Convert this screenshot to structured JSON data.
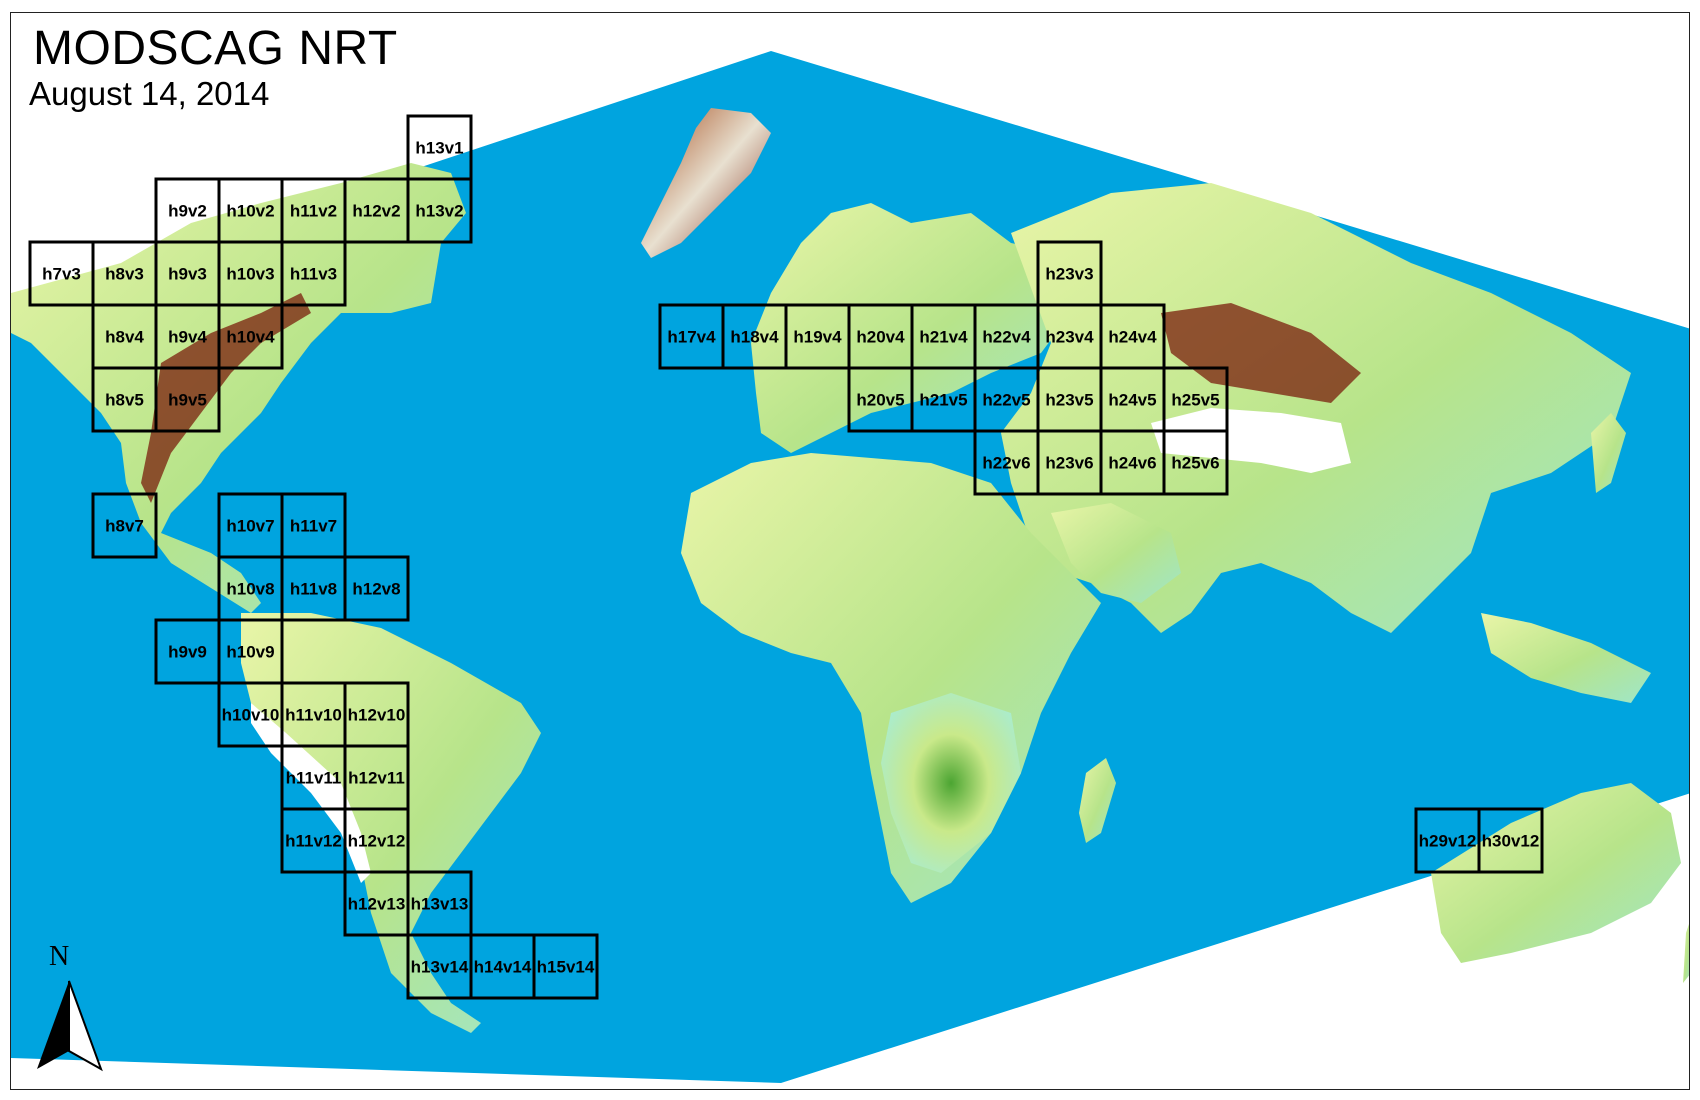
{
  "title": "MODSCAG NRT",
  "date": "August 14, 2014",
  "north_label": "N",
  "colors": {
    "ocean": "#00a4df",
    "lowland": "#a8ecd2",
    "plains": "#e9f5a8",
    "forest": "#4ca532",
    "highland": "#7a1e0c",
    "snow": "#ffffff",
    "tile_border": "#000000"
  },
  "icons": {
    "north_arrow": "north-arrow-icon"
  },
  "tiles": [
    {
      "label": "h13v1",
      "h": 13,
      "v": 1
    },
    {
      "label": "h9v2",
      "h": 9,
      "v": 2
    },
    {
      "label": "h10v2",
      "h": 10,
      "v": 2
    },
    {
      "label": "h11v2",
      "h": 11,
      "v": 2
    },
    {
      "label": "h12v2",
      "h": 12,
      "v": 2
    },
    {
      "label": "h13v2",
      "h": 13,
      "v": 2
    },
    {
      "label": "h7v3",
      "h": 7,
      "v": 3
    },
    {
      "label": "h8v3",
      "h": 8,
      "v": 3
    },
    {
      "label": "h9v3",
      "h": 9,
      "v": 3
    },
    {
      "label": "h10v3",
      "h": 10,
      "v": 3
    },
    {
      "label": "h11v3",
      "h": 11,
      "v": 3
    },
    {
      "label": "h8v4",
      "h": 8,
      "v": 4
    },
    {
      "label": "h9v4",
      "h": 9,
      "v": 4
    },
    {
      "label": "h10v4",
      "h": 10,
      "v": 4
    },
    {
      "label": "h8v5",
      "h": 8,
      "v": 5
    },
    {
      "label": "h9v5",
      "h": 9,
      "v": 5
    },
    {
      "label": "h8v7",
      "h": 8,
      "v": 7
    },
    {
      "label": "h10v7",
      "h": 10,
      "v": 7
    },
    {
      "label": "h11v7",
      "h": 11,
      "v": 7
    },
    {
      "label": "h10v8",
      "h": 10,
      "v": 8
    },
    {
      "label": "h11v8",
      "h": 11,
      "v": 8
    },
    {
      "label": "h12v8",
      "h": 12,
      "v": 8
    },
    {
      "label": "h9v9",
      "h": 9,
      "v": 9
    },
    {
      "label": "h10v9",
      "h": 10,
      "v": 9
    },
    {
      "label": "h10v10",
      "h": 10,
      "v": 10
    },
    {
      "label": "h11v10",
      "h": 11,
      "v": 10
    },
    {
      "label": "h12v10",
      "h": 12,
      "v": 10
    },
    {
      "label": "h11v11",
      "h": 11,
      "v": 11
    },
    {
      "label": "h12v11",
      "h": 12,
      "v": 11
    },
    {
      "label": "h11v12",
      "h": 11,
      "v": 12
    },
    {
      "label": "h12v12",
      "h": 12,
      "v": 12
    },
    {
      "label": "h12v13",
      "h": 12,
      "v": 13
    },
    {
      "label": "h13v13",
      "h": 13,
      "v": 13
    },
    {
      "label": "h13v14",
      "h": 13,
      "v": 14
    },
    {
      "label": "h14v14",
      "h": 14,
      "v": 14
    },
    {
      "label": "h15v14",
      "h": 15,
      "v": 14
    },
    {
      "label": "h17v4",
      "h": 17,
      "v": 4
    },
    {
      "label": "h18v4",
      "h": 18,
      "v": 4
    },
    {
      "label": "h19v4",
      "h": 19,
      "v": 4
    },
    {
      "label": "h20v4",
      "h": 20,
      "v": 4
    },
    {
      "label": "h21v4",
      "h": 21,
      "v": 4
    },
    {
      "label": "h22v4",
      "h": 22,
      "v": 4
    },
    {
      "label": "h23v4",
      "h": 23,
      "v": 4
    },
    {
      "label": "h24v4",
      "h": 24,
      "v": 4
    },
    {
      "label": "h23v3",
      "h": 23,
      "v": 3
    },
    {
      "label": "h20v5",
      "h": 20,
      "v": 5
    },
    {
      "label": "h21v5",
      "h": 21,
      "v": 5
    },
    {
      "label": "h22v5",
      "h": 22,
      "v": 5
    },
    {
      "label": "h23v5",
      "h": 23,
      "v": 5
    },
    {
      "label": "h24v5",
      "h": 24,
      "v": 5
    },
    {
      "label": "h25v5",
      "h": 25,
      "v": 5
    },
    {
      "label": "h22v6",
      "h": 22,
      "v": 6
    },
    {
      "label": "h23v6",
      "h": 23,
      "v": 6
    },
    {
      "label": "h24v6",
      "h": 24,
      "v": 6
    },
    {
      "label": "h25v6",
      "h": 25,
      "v": 6
    },
    {
      "label": "h29v12",
      "h": 29,
      "v": 12
    },
    {
      "label": "h30v12",
      "h": 30,
      "v": 12
    }
  ]
}
